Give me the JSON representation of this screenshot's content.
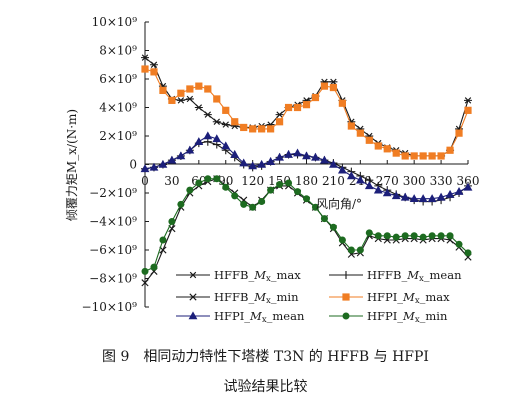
{
  "chart_data": {
    "type": "line",
    "xlabel": "风向角/°",
    "ylabel": "倾覆力矩M_x/(N·m)",
    "xlim": [
      0,
      360
    ],
    "ylim": [
      -10000000000,
      10000000000
    ],
    "x_ticks": [
      "0",
      "30",
      "60",
      "90",
      "120",
      "150",
      "180",
      "210",
      "240",
      "270",
      "300",
      "330",
      "360"
    ],
    "y_ticks": [
      "10×10⁹",
      "8×10⁹",
      "6×10⁹",
      "4×10⁹",
      "2×10⁹",
      "0",
      "−2×10⁹",
      "−4×10⁹",
      "−6×10⁹",
      "−8×10⁹",
      "−10×10⁹"
    ],
    "x": [
      0,
      10,
      20,
      30,
      40,
      50,
      60,
      70,
      80,
      90,
      100,
      110,
      120,
      130,
      140,
      150,
      160,
      170,
      180,
      190,
      200,
      210,
      220,
      230,
      240,
      250,
      260,
      270,
      280,
      290,
      300,
      310,
      320,
      330,
      340,
      350,
      360
    ],
    "series": [
      {
        "name": "HFFB_Mx_max",
        "color": "#1a1a1a",
        "marker": "asterisk",
        "values": [
          7.5,
          7.0,
          5.5,
          4.6,
          4.5,
          4.6,
          4.0,
          3.5,
          3.0,
          2.8,
          2.7,
          2.6,
          2.6,
          2.7,
          2.8,
          3.5,
          4.0,
          4.2,
          4.5,
          4.8,
          5.8,
          5.8,
          4.5,
          3.0,
          2.5,
          2.0,
          1.5,
          1.2,
          1.0,
          0.8,
          0.6,
          0.6,
          0.6,
          0.6,
          1.0,
          2.5,
          4.5
        ]
      },
      {
        "name": "HFFB_Mx_mean",
        "color": "#1a1a1a",
        "marker": "plus",
        "values": [
          -0.3,
          -0.2,
          0.0,
          0.3,
          0.6,
          1.0,
          1.5,
          1.6,
          1.4,
          1.0,
          0.5,
          0.0,
          -0.2,
          -0.1,
          0.2,
          0.5,
          0.7,
          0.7,
          0.6,
          0.5,
          0.3,
          0.1,
          -0.2,
          -0.5,
          -0.8,
          -1.1,
          -1.5,
          -1.8,
          -2.1,
          -2.3,
          -2.5,
          -2.6,
          -2.6,
          -2.5,
          -2.3,
          -2.0,
          -1.5
        ]
      },
      {
        "name": "HFFB_Mx_min",
        "color": "#1a1a1a",
        "marker": "x",
        "values": [
          -8.3,
          -7.5,
          -6.0,
          -4.5,
          -3.0,
          -2.0,
          -1.5,
          -1.2,
          -1.0,
          -1.5,
          -2.0,
          -2.5,
          -3.0,
          -2.5,
          -1.8,
          -1.5,
          -1.5,
          -2.0,
          -2.5,
          -3.0,
          -3.8,
          -4.5,
          -5.5,
          -6.3,
          -6.2,
          -5.0,
          -5.2,
          -5.3,
          -5.3,
          -5.2,
          -5.2,
          -5.3,
          -5.2,
          -5.2,
          -5.3,
          -5.8,
          -6.5
        ]
      },
      {
        "name": "HFPI_Mx_max",
        "color": "#f07d23",
        "marker": "square",
        "values": [
          6.7,
          6.5,
          5.2,
          4.5,
          5.0,
          5.3,
          5.5,
          5.3,
          4.6,
          3.8,
          3.0,
          2.6,
          2.5,
          2.5,
          2.5,
          3.0,
          4.0,
          4.0,
          4.2,
          4.7,
          5.5,
          5.4,
          4.3,
          2.7,
          2.2,
          1.7,
          1.3,
          1.1,
          0.8,
          0.6,
          0.6,
          0.6,
          0.6,
          0.6,
          1.0,
          2.2,
          3.8
        ]
      },
      {
        "name": "HFPI_Mx_mean",
        "color": "#1c1f7a",
        "marker": "triangle",
        "values": [
          -0.3,
          -0.2,
          0.0,
          0.3,
          0.6,
          1.0,
          1.6,
          2.0,
          1.8,
          1.3,
          0.7,
          0.1,
          -0.1,
          0.0,
          0.2,
          0.5,
          0.7,
          0.8,
          0.6,
          0.5,
          0.3,
          0.0,
          -0.4,
          -0.8,
          -1.1,
          -1.5,
          -1.8,
          -2.0,
          -2.2,
          -2.3,
          -2.4,
          -2.4,
          -2.4,
          -2.3,
          -2.1,
          -1.9,
          -1.6
        ]
      },
      {
        "name": "HFPI_Mx_min",
        "color": "#1d6b20",
        "marker": "circle",
        "values": [
          -7.5,
          -7.2,
          -5.3,
          -4.0,
          -2.8,
          -1.8,
          -1.3,
          -1.0,
          -1.0,
          -1.6,
          -2.2,
          -2.8,
          -3.0,
          -2.6,
          -1.8,
          -1.4,
          -1.3,
          -1.9,
          -2.4,
          -3.0,
          -3.8,
          -4.4,
          -5.3,
          -6.0,
          -6.0,
          -4.8,
          -5.0,
          -5.0,
          -5.1,
          -5.0,
          -5.0,
          -5.1,
          -5.0,
          -5.0,
          -5.0,
          -5.6,
          -6.2
        ]
      }
    ],
    "value_scale": "×10⁹ N·m",
    "grid": false,
    "legend_position": "bottom-center",
    "legend": [
      {
        "base": "HFFB_",
        "var": "M",
        "sub": "x",
        "suffix": "_max"
      },
      {
        "base": "HFFB_",
        "var": "M",
        "sub": "x",
        "suffix": "_mean"
      },
      {
        "base": "HFFB_",
        "var": "M",
        "sub": "x",
        "suffix": "_min"
      },
      {
        "base": "HFPI_",
        "var": "M",
        "sub": "x",
        "suffix": "_max"
      },
      {
        "base": "HFPI_",
        "var": "M",
        "sub": "x",
        "suffix": "_mean"
      },
      {
        "base": "HFPI_",
        "var": "M",
        "sub": "x",
        "suffix": "_min"
      }
    ]
  },
  "caption": {
    "line1": "图 9　相同动力特性下塔楼 T3N 的 HFFB 与 HFPI",
    "line2": "试验结果比较"
  }
}
